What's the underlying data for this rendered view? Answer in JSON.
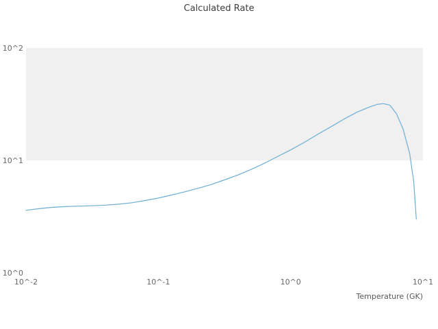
{
  "figure": {
    "title": "Calculated Rate",
    "xlabel": "Temperature (GK)",
    "line_color": "#6baed6",
    "band_color": "#f0f0f0",
    "background_color": "#ffffff"
  },
  "chart_data": {
    "type": "line",
    "title": "Calculated Rate",
    "xlabel": "Temperature (GK)",
    "ylabel": "",
    "xscale": "log",
    "yscale": "log",
    "xlim": [
      0.01,
      10
    ],
    "ylim": [
      1,
      100
    ],
    "grid": false,
    "legend": "none",
    "x_ticks": [
      {
        "value": 0.01,
        "label": "10^-2"
      },
      {
        "value": 0.1,
        "label": "10^-1"
      },
      {
        "value": 1,
        "label": "10^0"
      },
      {
        "value": 10,
        "label": "10^1"
      }
    ],
    "y_ticks": [
      {
        "value": 1,
        "label": "10^0"
      },
      {
        "value": 10,
        "label": "10^1"
      },
      {
        "value": 100,
        "label": "10^2"
      }
    ],
    "shaded_band_y": [
      10,
      100
    ],
    "series": [
      {
        "name": "calculated-rate",
        "x": [
          0.01,
          0.0126,
          0.0158,
          0.02,
          0.0251,
          0.0316,
          0.0398,
          0.0501,
          0.0631,
          0.0794,
          0.1,
          0.126,
          0.158,
          0.2,
          0.251,
          0.316,
          0.398,
          0.501,
          0.631,
          0.794,
          1.0,
          1.26,
          1.58,
          2.0,
          2.51,
          3.16,
          3.98,
          4.5,
          5.01,
          5.62,
          6.31,
          7.08,
          7.94,
          8.51,
          8.91
        ],
        "y": [
          3.6,
          3.72,
          3.82,
          3.88,
          3.92,
          3.95,
          4.0,
          4.08,
          4.2,
          4.4,
          4.62,
          4.92,
          5.25,
          5.65,
          6.1,
          6.7,
          7.4,
          8.3,
          9.4,
          10.8,
          12.4,
          14.4,
          16.9,
          19.8,
          23.2,
          26.8,
          30.0,
          31.5,
          32.0,
          31.0,
          26.0,
          19.0,
          11.5,
          6.5,
          3.0
        ]
      }
    ]
  }
}
